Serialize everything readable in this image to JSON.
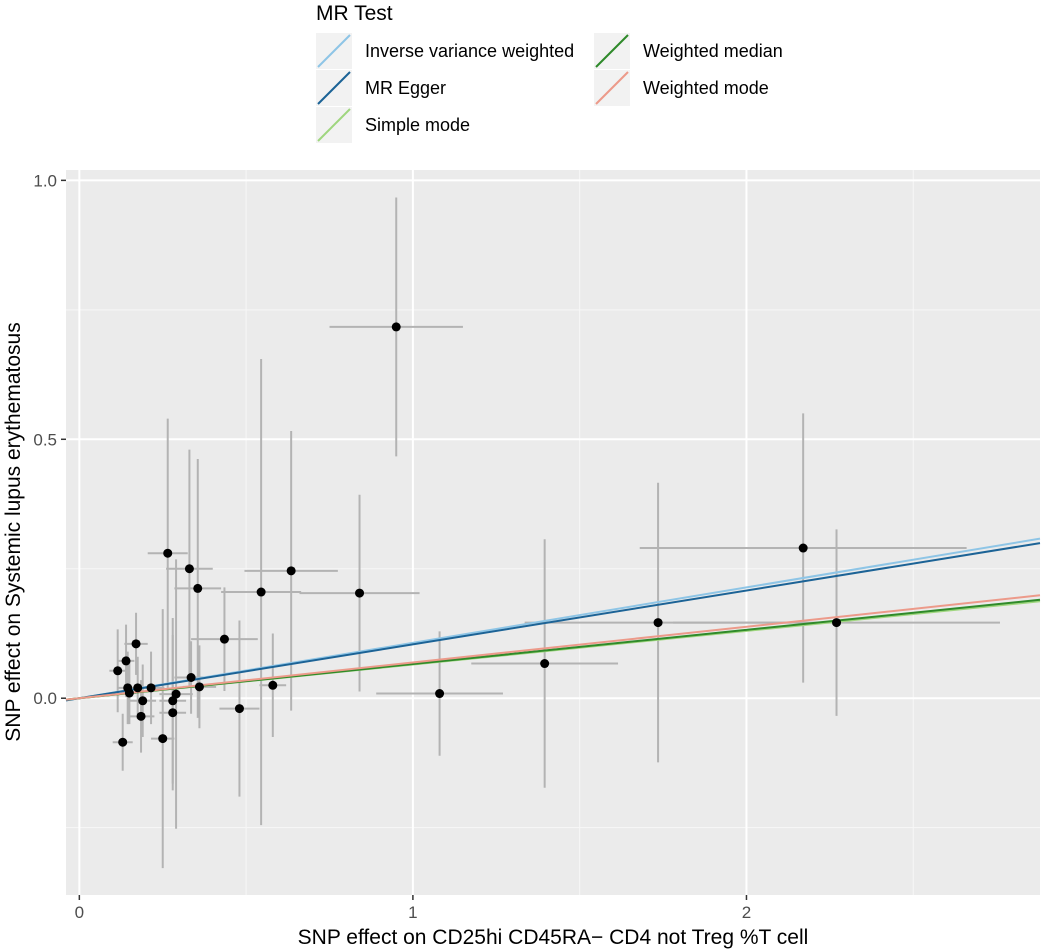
{
  "chart_data": {
    "type": "scatter",
    "title": "",
    "xlabel": "SNP effect on CD25hi CD45RA− CD4 not Treg %T cell",
    "ylabel": "SNP effect on Systemic lupus erythematosus",
    "xlim": [
      -0.04,
      2.88
    ],
    "ylim": [
      -0.38,
      1.02
    ],
    "x_ticks": [
      0,
      1,
      2
    ],
    "x_tick_labels": [
      "0",
      "1",
      "2"
    ],
    "y_ticks": [
      0.0,
      0.5,
      1.0
    ],
    "y_tick_labels": [
      "0.0",
      "0.5",
      "1.0"
    ],
    "grid": true,
    "legend": {
      "title": "MR Test",
      "position": "top",
      "entries": [
        {
          "label": "Inverse variance weighted",
          "color": "#8ec5e6"
        },
        {
          "label": "MR Egger",
          "color": "#1c6396"
        },
        {
          "label": "Simple mode",
          "color": "#9fd67f"
        },
        {
          "label": "Weighted median",
          "color": "#2f8a2a"
        },
        {
          "label": "Weighted mode",
          "color": "#ec9a8a"
        }
      ]
    },
    "lines": [
      {
        "name": "Inverse variance weighted",
        "intercept": 0.0,
        "slope": 0.107,
        "color": "#8ec5e6"
      },
      {
        "name": "MR Egger",
        "intercept": 0.0,
        "slope": 0.104,
        "color": "#1c6396"
      },
      {
        "name": "Simple mode",
        "intercept": 0.0,
        "slope": 0.065,
        "color": "#9fd67f"
      },
      {
        "name": "Weighted median",
        "intercept": 0.0,
        "slope": 0.066,
        "color": "#2f8a2a"
      },
      {
        "name": "Weighted mode",
        "intercept": 0.0,
        "slope": 0.069,
        "color": "#ec9a8a"
      }
    ],
    "points": [
      {
        "x": 0.115,
        "y": 0.053,
        "xerr": 0.025,
        "yerr": 0.08
      },
      {
        "x": 0.13,
        "y": -0.085,
        "xerr": 0.03,
        "yerr": 0.055
      },
      {
        "x": 0.14,
        "y": 0.072,
        "xerr": 0.025,
        "yerr": 0.07
      },
      {
        "x": 0.145,
        "y": 0.02,
        "xerr": 0.03,
        "yerr": 0.07
      },
      {
        "x": 0.15,
        "y": 0.01,
        "xerr": 0.02,
        "yerr": 0.06
      },
      {
        "x": 0.17,
        "y": 0.105,
        "xerr": 0.035,
        "yerr": 0.06
      },
      {
        "x": 0.175,
        "y": 0.02,
        "xerr": 0.04,
        "yerr": 0.06
      },
      {
        "x": 0.185,
        "y": -0.035,
        "xerr": 0.04,
        "yerr": 0.07
      },
      {
        "x": 0.19,
        "y": -0.005,
        "xerr": 0.04,
        "yerr": 0.07
      },
      {
        "x": 0.215,
        "y": 0.02,
        "xerr": 0.04,
        "yerr": 0.07
      },
      {
        "x": 0.25,
        "y": -0.078,
        "xerr": 0.035,
        "yerr": 0.25
      },
      {
        "x": 0.265,
        "y": 0.28,
        "xerr": 0.06,
        "yerr": 0.26
      },
      {
        "x": 0.28,
        "y": -0.005,
        "xerr": 0.04,
        "yerr": 0.16
      },
      {
        "x": 0.28,
        "y": -0.028,
        "xerr": 0.04,
        "yerr": 0.15
      },
      {
        "x": 0.29,
        "y": 0.008,
        "xerr": 0.05,
        "yerr": 0.26
      },
      {
        "x": 0.33,
        "y": 0.25,
        "xerr": 0.07,
        "yerr": 0.23
      },
      {
        "x": 0.335,
        "y": 0.04,
        "xerr": 0.05,
        "yerr": 0.07
      },
      {
        "x": 0.355,
        "y": 0.212,
        "xerr": 0.07,
        "yerr": 0.25
      },
      {
        "x": 0.36,
        "y": 0.022,
        "xerr": 0.05,
        "yerr": 0.08
      },
      {
        "x": 0.435,
        "y": 0.114,
        "xerr": 0.1,
        "yerr": 0.1
      },
      {
        "x": 0.48,
        "y": -0.02,
        "xerr": 0.06,
        "yerr": 0.17
      },
      {
        "x": 0.545,
        "y": 0.205,
        "xerr": 0.12,
        "yerr": 0.45
      },
      {
        "x": 0.58,
        "y": 0.025,
        "xerr": 0.04,
        "yerr": 0.1
      },
      {
        "x": 0.635,
        "y": 0.246,
        "xerr": 0.14,
        "yerr": 0.27
      },
      {
        "x": 0.84,
        "y": 0.203,
        "xerr": 0.18,
        "yerr": 0.19
      },
      {
        "x": 0.95,
        "y": 0.717,
        "xerr": 0.2,
        "yerr": 0.25
      },
      {
        "x": 1.08,
        "y": 0.009,
        "xerr": 0.19,
        "yerr": 0.12
      },
      {
        "x": 1.395,
        "y": 0.067,
        "xerr": 0.22,
        "yerr": 0.24
      },
      {
        "x": 1.735,
        "y": 0.146,
        "xerr": 0.4,
        "yerr": 0.27
      },
      {
        "x": 2.17,
        "y": 0.29,
        "xerr": 0.49,
        "yerr": 0.26
      },
      {
        "x": 2.27,
        "y": 0.146,
        "xerr": 0.49,
        "yerr": 0.18
      }
    ]
  }
}
